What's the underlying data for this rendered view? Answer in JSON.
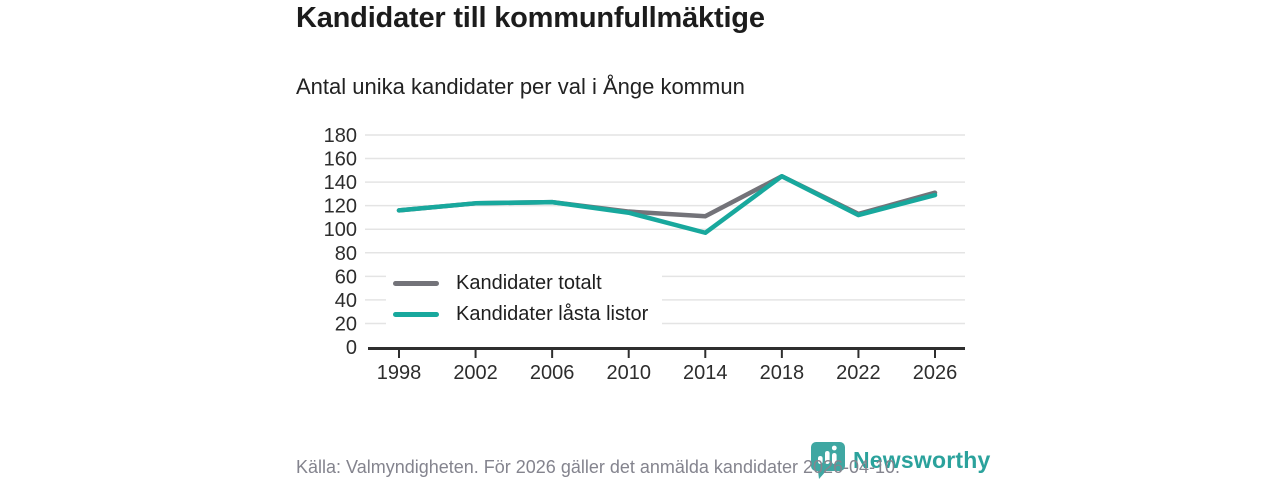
{
  "header": {
    "title": "Kandidater till kommunfullmäktige",
    "subtitle": "Antal unika kandidater per val i Ånge kommun"
  },
  "chart_data": {
    "type": "line",
    "title": "Kandidater till kommunfullmäktige",
    "subtitle": "Antal unika kandidater per val i Ånge kommun",
    "categories": [
      1998,
      2002,
      2006,
      2010,
      2014,
      2018,
      2022,
      2026
    ],
    "series": [
      {
        "name": "Kandidater totalt",
        "color": "#737379",
        "values": [
          116,
          122,
          123,
          115,
          111,
          145,
          113,
          131
        ]
      },
      {
        "name": "Kandidater låsta listor",
        "color": "#18a89d",
        "values": [
          116,
          122,
          123,
          114,
          97,
          145,
          112,
          129
        ]
      }
    ],
    "xlabel": "",
    "ylabel": "",
    "ylim": [
      0,
      180
    ],
    "ytick_step": 20,
    "grid": "horizontal",
    "legend_position": "inside-bottom-left"
  },
  "footer": {
    "source": "Källa: Valmyndigheten. För 2026 gäller det anmälda kandidater 2026-04-10.",
    "brand": "Newsworthy"
  },
  "colors": {
    "accent_teal": "#18a89d",
    "gray_series": "#737379",
    "brand_teal": "#2ba29c",
    "brand_icon_teal": "#3fa7a2",
    "axis": "#2f2f2f",
    "grid": "#e4e4e4",
    "footer_text": "#84848e"
  }
}
